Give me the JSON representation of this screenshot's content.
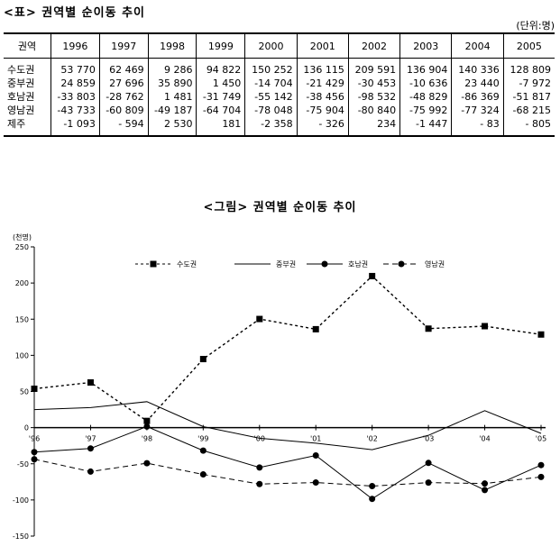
{
  "table": {
    "title": "<표>  권역별 순이동 추이",
    "unit": "(단위:명)",
    "header_region": "권역",
    "years": [
      "1996",
      "1997",
      "1998",
      "1999",
      "2000",
      "2001",
      "2002",
      "2003",
      "2004",
      "2005"
    ],
    "rows": [
      {
        "region": "수도권",
        "values": [
          "53 770",
          "62 469",
          "9 286",
          "94 822",
          "150 252",
          "136 115",
          "209 591",
          "136 904",
          "140 336",
          "128 809"
        ]
      },
      {
        "region": "중부권",
        "values": [
          "24 859",
          "27 696",
          "35 890",
          "1 450",
          "-14 704",
          "-21 429",
          "-30 453",
          "-10 636",
          "23 440",
          "-7 972"
        ]
      },
      {
        "region": "호남권",
        "values": [
          "-33 803",
          "-28 762",
          "1 481",
          "-31 749",
          "-55 142",
          "-38 456",
          "-98 532",
          "-48 829",
          "-86 369",
          "-51 817"
        ]
      },
      {
        "region": "영남권",
        "values": [
          "-43 733",
          "-60 809",
          "-49 187",
          "-64 704",
          "-78 048",
          "-75 904",
          "-80 840",
          "-75 992",
          "-77 324",
          "-68 215"
        ]
      },
      {
        "region": "제주",
        "values": [
          "-1 093",
          "- 594",
          "2 530",
          "181",
          "-2 358",
          "- 326",
          "234",
          "-1 447",
          "- 83",
          "- 805"
        ]
      }
    ]
  },
  "chart_data": {
    "type": "line",
    "title": "<그림> 권역별 순이동 추이",
    "ylabel": "(천명)",
    "categories": [
      "'96",
      "'97",
      "'98",
      "'99",
      "'00",
      "'01",
      "'02",
      "'03",
      "'04",
      "'05"
    ],
    "ylim": [
      -150,
      250
    ],
    "yticks": [
      250,
      200,
      150,
      100,
      50,
      0,
      -50,
      -100,
      -150
    ],
    "legend_position": "top",
    "series": [
      {
        "name": "수도권",
        "values": [
          53.77,
          62.469,
          9.286,
          94.822,
          150.252,
          136.115,
          209.591,
          136.904,
          140.336,
          128.809
        ],
        "marker": "square",
        "dash": "3,3"
      },
      {
        "name": "중부권",
        "values": [
          24.859,
          27.696,
          35.89,
          1.45,
          -14.704,
          -21.429,
          -30.453,
          -10.636,
          23.44,
          -7.972
        ],
        "marker": "none",
        "dash": ""
      },
      {
        "name": "호남권",
        "values": [
          -33.803,
          -28.762,
          1.481,
          -31.749,
          -55.142,
          -38.456,
          -98.532,
          -48.829,
          -86.369,
          -51.817
        ],
        "marker": "circle",
        "dash": ""
      },
      {
        "name": "영남권",
        "values": [
          -43.733,
          -60.809,
          -49.187,
          -64.704,
          -78.048,
          -75.904,
          -80.84,
          -75.992,
          -77.324,
          -68.215
        ],
        "marker": "circle",
        "dash": "6,4"
      }
    ]
  }
}
